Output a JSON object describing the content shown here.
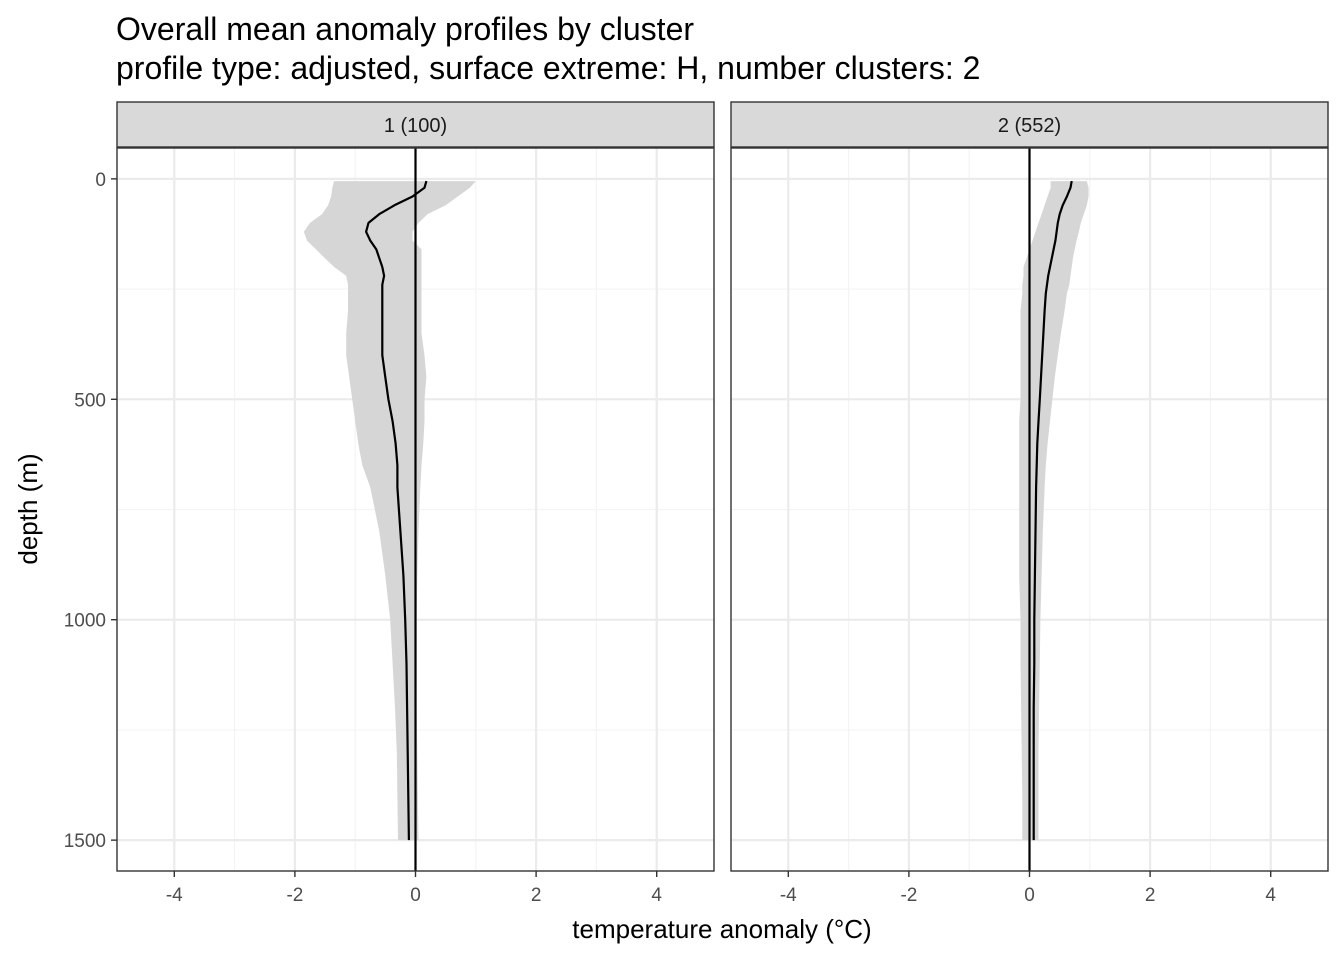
{
  "chart_data": {
    "type": "line",
    "title": "Overall mean anomaly profiles by cluster",
    "subtitle": "profile type: adjusted, surface extreme: H, number clusters: 2",
    "xlabel": "temperature anomaly (°C)",
    "ylabel": "depth (m)",
    "xlim": [
      -4.95,
      4.95
    ],
    "ylim": [
      -70,
      1570
    ],
    "y_reversed": true,
    "x_ticks": [
      -4,
      -2,
      0,
      2,
      4
    ],
    "y_ticks": [
      0,
      500,
      1000,
      1500
    ],
    "grid": true,
    "reference_line_x": 0,
    "panels": [
      {
        "label": "1 (100)",
        "mean_profile": {
          "depth": [
            5,
            20,
            40,
            60,
            80,
            100,
            120,
            140,
            160,
            180,
            200,
            220,
            240,
            260,
            300,
            350,
            400,
            450,
            500,
            550,
            600,
            650,
            700,
            800,
            900,
            1000,
            1100,
            1200,
            1300,
            1400,
            1500
          ],
          "anomaly": [
            0.18,
            0.15,
            -0.05,
            -0.35,
            -0.6,
            -0.78,
            -0.82,
            -0.75,
            -0.65,
            -0.6,
            -0.55,
            -0.52,
            -0.55,
            -0.55,
            -0.55,
            -0.55,
            -0.55,
            -0.5,
            -0.45,
            -0.38,
            -0.33,
            -0.3,
            -0.3,
            -0.25,
            -0.2,
            -0.17,
            -0.15,
            -0.14,
            -0.13,
            -0.12,
            -0.11
          ]
        },
        "band_lower": [
          -1.35,
          -1.38,
          -1.4,
          -1.45,
          -1.55,
          -1.75,
          -1.85,
          -1.8,
          -1.65,
          -1.5,
          -1.35,
          -1.15,
          -1.12,
          -1.12,
          -1.12,
          -1.15,
          -1.15,
          -1.1,
          -1.05,
          -1.0,
          -0.95,
          -0.88,
          -0.75,
          -0.6,
          -0.5,
          -0.42,
          -0.38,
          -0.34,
          -0.31,
          -0.3,
          -0.29
        ],
        "band_upper": [
          1.0,
          0.9,
          0.7,
          0.5,
          0.2,
          0.05,
          -0.05,
          -0.05,
          0.1,
          0.1,
          0.1,
          0.1,
          0.1,
          0.1,
          0.1,
          0.1,
          0.15,
          0.18,
          0.15,
          0.15,
          0.13,
          0.1,
          0.08,
          0.05,
          0.03,
          0.02,
          0.02,
          0.02,
          0.03,
          0.04,
          0.05
        ]
      },
      {
        "label": "2 (552)",
        "mean_profile": {
          "depth": [
            5,
            20,
            40,
            60,
            80,
            100,
            120,
            140,
            160,
            180,
            200,
            220,
            240,
            260,
            300,
            350,
            400,
            450,
            500,
            550,
            600,
            650,
            700,
            800,
            900,
            1000,
            1100,
            1200,
            1300,
            1400,
            1500
          ],
          "anomaly": [
            0.7,
            0.68,
            0.62,
            0.55,
            0.5,
            0.47,
            0.45,
            0.43,
            0.4,
            0.37,
            0.34,
            0.31,
            0.29,
            0.27,
            0.25,
            0.23,
            0.21,
            0.19,
            0.17,
            0.15,
            0.13,
            0.12,
            0.11,
            0.1,
            0.09,
            0.08,
            0.08,
            0.07,
            0.07,
            0.07,
            0.07
          ]
        },
        "band_lower": [
          0.35,
          0.35,
          0.3,
          0.25,
          0.2,
          0.15,
          0.1,
          0.05,
          0.0,
          -0.05,
          -0.1,
          -0.1,
          -0.12,
          -0.12,
          -0.15,
          -0.15,
          -0.15,
          -0.15,
          -0.15,
          -0.17,
          -0.17,
          -0.17,
          -0.17,
          -0.17,
          -0.17,
          -0.15,
          -0.15,
          -0.14,
          -0.13,
          -0.12,
          -0.12
        ],
        "band_upper": [
          0.95,
          0.98,
          0.98,
          0.95,
          0.9,
          0.85,
          0.82,
          0.78,
          0.75,
          0.72,
          0.7,
          0.68,
          0.66,
          0.62,
          0.58,
          0.52,
          0.47,
          0.42,
          0.38,
          0.34,
          0.3,
          0.27,
          0.25,
          0.22,
          0.2,
          0.18,
          0.17,
          0.16,
          0.15,
          0.15,
          0.15
        ]
      }
    ],
    "colors": {
      "band": "#d6d6d6",
      "line": "#000000",
      "grid_major": "#ebebeb",
      "grid_minor": "#f4f4f4",
      "strip_bg": "#d9d9d9",
      "panel_border": "#333333"
    }
  }
}
